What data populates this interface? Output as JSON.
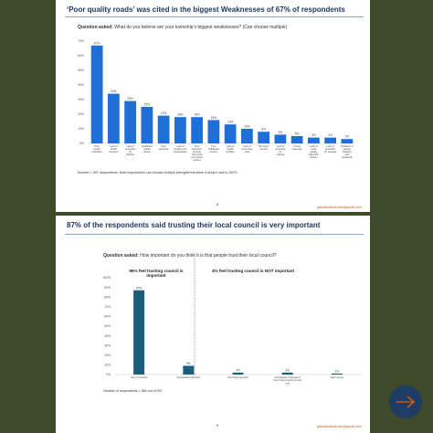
{
  "slide1": {
    "title": "‘Poor quality roads’ was cited in the biggest Weaknesses of 67% of respondents",
    "question_label": "Question asked:",
    "question_text": "What do you believe are your township’s biggest weaknesses? (Can choose multiple)",
    "note": "Number = 597 respondents. Note respondents can choose multiple strengths therefore it doesn’t add to 100%",
    "page": "8",
    "email": "jasonkhantsal.ans@gmail.com"
  },
  "slide2": {
    "title": "87% of the respondents said trusting their local council is very important",
    "question_label": "Question asked:",
    "question_text": "How important do you think it is that people trust their local council?",
    "left_heading": "96% feel trusting council is important",
    "right_heading": "4% feel trusting council is NOT important",
    "note": "Number of respondents = 584 out of 597",
    "page": "9",
    "email": "jasonkhantsal.ans@gmail.com"
  },
  "chart_data": [
    {
      "type": "bar",
      "title": "‘Poor quality roads’ was cited in the biggest Weaknesses of 67% of respondents",
      "categories": [
        "Poor quality roads/bus",
        "Lack of Public transport",
        "Lack of amenities for families",
        "Insufficient mobile phone",
        "Poor electricity",
        "Lack of employment opportunities",
        "Poor education, schools, clinic and community centres",
        "Poor healthcare access",
        "Lack of health facilities",
        "Lack of community spirit",
        "Not many tourists",
        "Lack of amenities for retirees",
        "Crime/ insecurity",
        "Lack of good quality education options",
        "Lack of amenities for teenage",
        "Problems in getting holidays and weekends"
      ],
      "values": [
        67,
        34,
        29,
        25,
        19,
        18,
        18,
        16,
        13,
        10,
        8,
        6,
        5,
        4,
        4,
        3
      ],
      "value_labels": [
        "67%",
        "34%",
        "29%",
        "25%",
        "19%",
        "18%",
        "18%",
        "16%",
        "13%",
        "10%",
        "8%",
        "6%",
        "5%",
        "4%",
        "4%",
        "3%"
      ],
      "ylim": [
        0,
        70
      ],
      "yticks": [
        "0%",
        "10%",
        "20%",
        "30%",
        "40%",
        "50%",
        "60%",
        "70%"
      ],
      "xlabel": "",
      "ylabel": "",
      "color": "#1f6fd6",
      "grid": false
    },
    {
      "type": "bar",
      "title": "87% of the respondents said trusting their local council is very important",
      "categories": [
        "Very important",
        "Somewhat important",
        "Not that important",
        "Completely irrelevant if they have a local council role",
        "Don't know"
      ],
      "values": [
        87,
        9,
        2,
        2,
        1
      ],
      "value_labels": [
        "87%",
        "9%",
        "2%",
        "2%",
        "1%"
      ],
      "ylim": [
        0,
        100
      ],
      "yticks": [
        "0%",
        "10%",
        "20%",
        "30%",
        "40%",
        "50%",
        "60%",
        "70%",
        "80%",
        "90%",
        "100%"
      ],
      "xlabel": "",
      "ylabel": "",
      "color": "#1b5e7a",
      "grid": false
    }
  ],
  "icons": {
    "next": "arrow-right-icon"
  },
  "colors": {
    "title": "#1f3864",
    "bar1": "#1f6fd6",
    "bar2": "#1b5e7a",
    "accent": "#c55a11"
  }
}
